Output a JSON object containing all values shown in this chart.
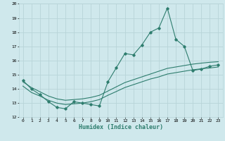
{
  "xlabel": "Humidex (Indice chaleur)",
  "xlim": [
    -0.5,
    23.5
  ],
  "ylim": [
    12,
    20
  ],
  "yticks": [
    12,
    13,
    14,
    15,
    16,
    17,
    18,
    19,
    20
  ],
  "xticks": [
    0,
    1,
    2,
    3,
    4,
    5,
    6,
    7,
    8,
    9,
    10,
    11,
    12,
    13,
    14,
    15,
    16,
    17,
    18,
    19,
    20,
    21,
    22,
    23
  ],
  "bg_color": "#cfe8ec",
  "line_color": "#2e7d6e",
  "grid_color": "#b8d4d8",
  "series1_x": [
    0,
    1,
    2,
    3,
    4,
    5,
    6,
    7,
    8,
    9,
    10,
    11,
    12,
    13,
    14,
    15,
    16,
    17,
    18,
    19,
    20,
    21,
    22,
    23
  ],
  "series1_y": [
    14.6,
    14.0,
    13.6,
    13.1,
    12.7,
    12.6,
    13.1,
    13.0,
    12.9,
    12.8,
    14.5,
    15.5,
    16.5,
    16.4,
    17.1,
    18.0,
    18.3,
    19.7,
    17.5,
    17.0,
    15.3,
    15.4,
    15.6,
    15.7
  ],
  "series2_x": [
    0,
    1,
    2,
    3,
    4,
    5,
    6,
    7,
    8,
    9,
    10,
    11,
    12,
    13,
    14,
    15,
    16,
    17,
    18,
    19,
    20,
    21,
    22,
    23
  ],
  "series2_y": [
    14.5,
    14.1,
    13.8,
    13.5,
    13.3,
    13.2,
    13.25,
    13.3,
    13.4,
    13.55,
    13.85,
    14.15,
    14.45,
    14.65,
    14.85,
    15.05,
    15.25,
    15.45,
    15.55,
    15.65,
    15.75,
    15.82,
    15.88,
    15.92
  ],
  "series3_x": [
    0,
    1,
    2,
    3,
    4,
    5,
    6,
    7,
    8,
    9,
    10,
    11,
    12,
    13,
    14,
    15,
    16,
    17,
    18,
    19,
    20,
    21,
    22,
    23
  ],
  "series3_y": [
    14.2,
    13.75,
    13.5,
    13.2,
    13.0,
    12.9,
    12.95,
    13.0,
    13.1,
    13.25,
    13.55,
    13.82,
    14.1,
    14.3,
    14.5,
    14.7,
    14.85,
    15.05,
    15.15,
    15.25,
    15.35,
    15.42,
    15.48,
    15.55
  ]
}
